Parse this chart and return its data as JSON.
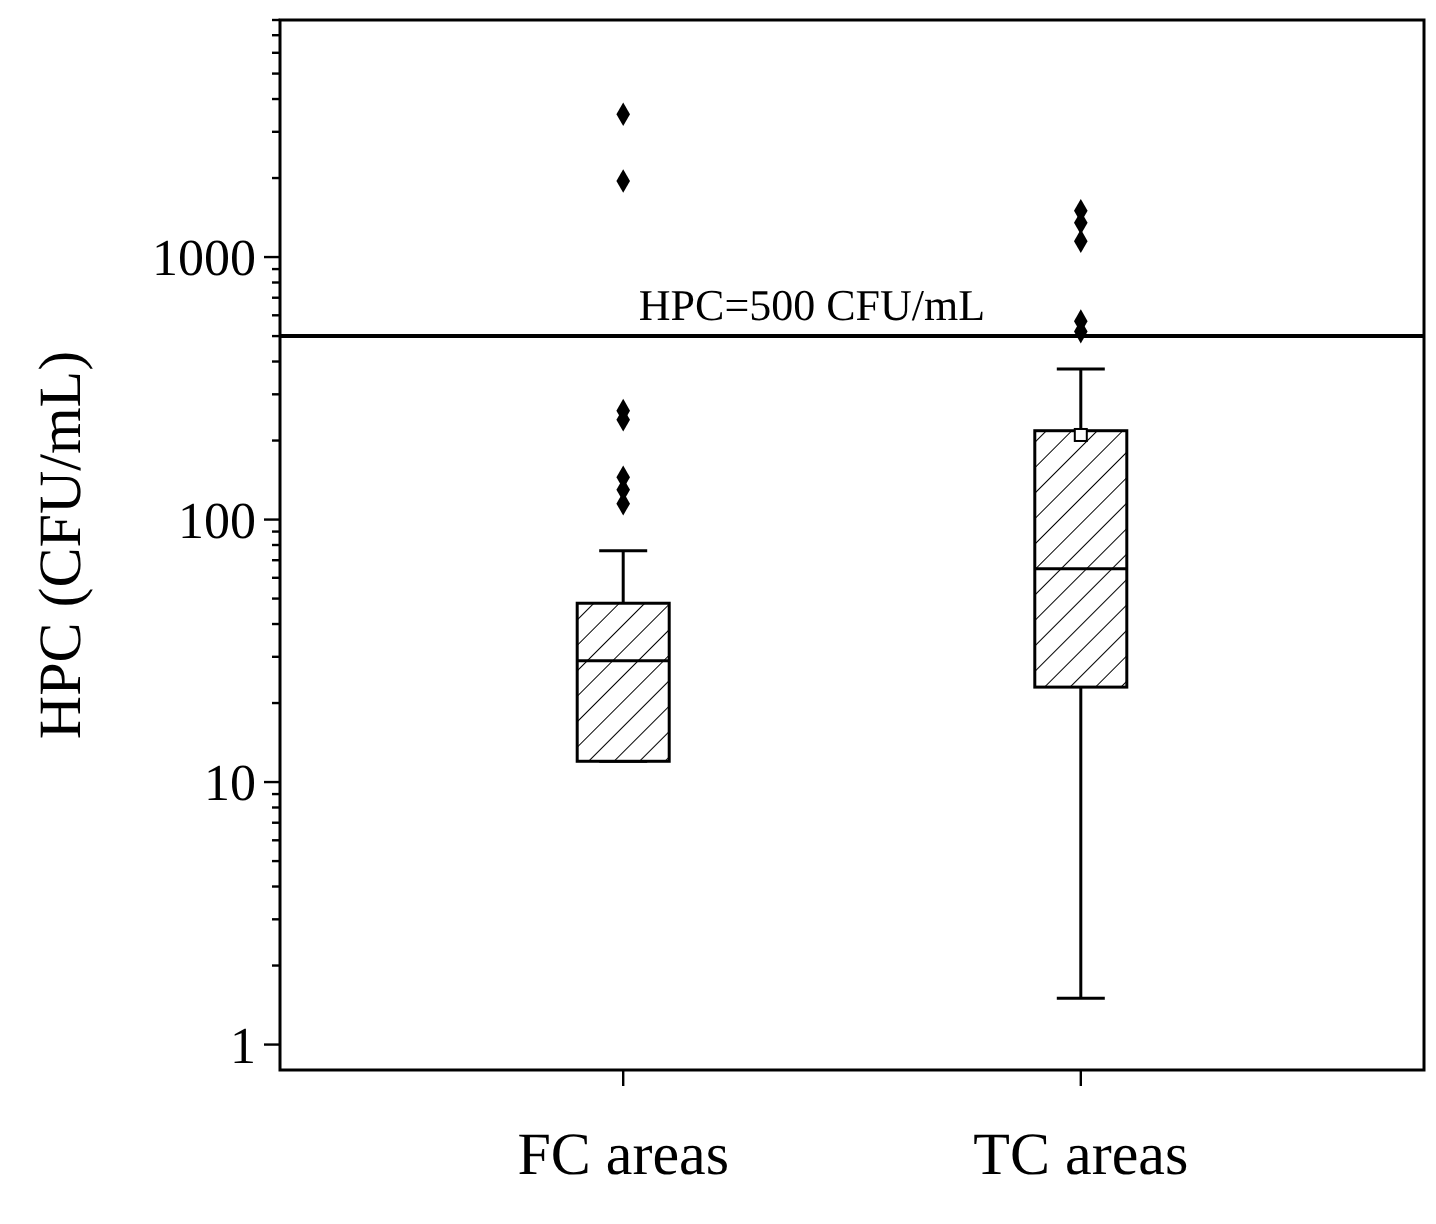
{
  "chart_data": {
    "type": "box",
    "xlabel": null,
    "ylabel": "HPC (CFU/mL)",
    "categories": [
      "FC areas",
      "TC areas"
    ],
    "boxes": [
      {
        "low": 12,
        "q1": 12,
        "median": 29,
        "q3": 48,
        "high": 76,
        "outliers": [
          3500,
          1950,
          260,
          240,
          145,
          130,
          115
        ]
      },
      {
        "low": 1.5,
        "q1": 23,
        "median": 65,
        "q3": 218,
        "high": 375,
        "mean": 210,
        "outliers": [
          1500,
          1350,
          1150,
          570,
          520
        ]
      }
    ],
    "log": true,
    "ylim": [
      0.8,
      8000
    ],
    "yticks": [
      1,
      {
        "value": 2,
        "label": null
      },
      {
        "value": 3,
        "label": null
      },
      {
        "value": 4,
        "label": null
      },
      {
        "value": 5,
        "label": null
      },
      {
        "value": 6,
        "label": null
      },
      {
        "value": 7,
        "label": null
      },
      {
        "value": 8,
        "label": null
      },
      {
        "value": 9,
        "label": null
      },
      10,
      {
        "value": 20,
        "label": null
      },
      {
        "value": 30,
        "label": null
      },
      {
        "value": 40,
        "label": null
      },
      {
        "value": 50,
        "label": null
      },
      {
        "value": 60,
        "label": null
      },
      {
        "value": 70,
        "label": null
      },
      {
        "value": 80,
        "label": null
      },
      {
        "value": 90,
        "label": null
      },
      100,
      {
        "value": 200,
        "label": null
      },
      {
        "value": 300,
        "label": null
      },
      {
        "value": 400,
        "label": null
      },
      {
        "value": 500,
        "label": null
      },
      {
        "value": 600,
        "label": null
      },
      {
        "value": 700,
        "label": null
      },
      {
        "value": 800,
        "label": null
      },
      {
        "value": 900,
        "label": null
      },
      1000,
      {
        "value": 2000,
        "label": null
      },
      {
        "value": 3000,
        "label": null
      },
      {
        "value": 4000,
        "label": null
      },
      {
        "value": 5000,
        "label": null
      },
      {
        "value": 6000,
        "label": null
      },
      {
        "value": 7000,
        "label": null
      },
      {
        "value": 8000,
        "label": null
      }
    ],
    "ref_lines": [
      {
        "axis": "y",
        "value": 500,
        "label": "HPC=500 CFU/mL"
      }
    ],
    "marker": "diamond",
    "color": "#000000",
    "grid": false
  }
}
